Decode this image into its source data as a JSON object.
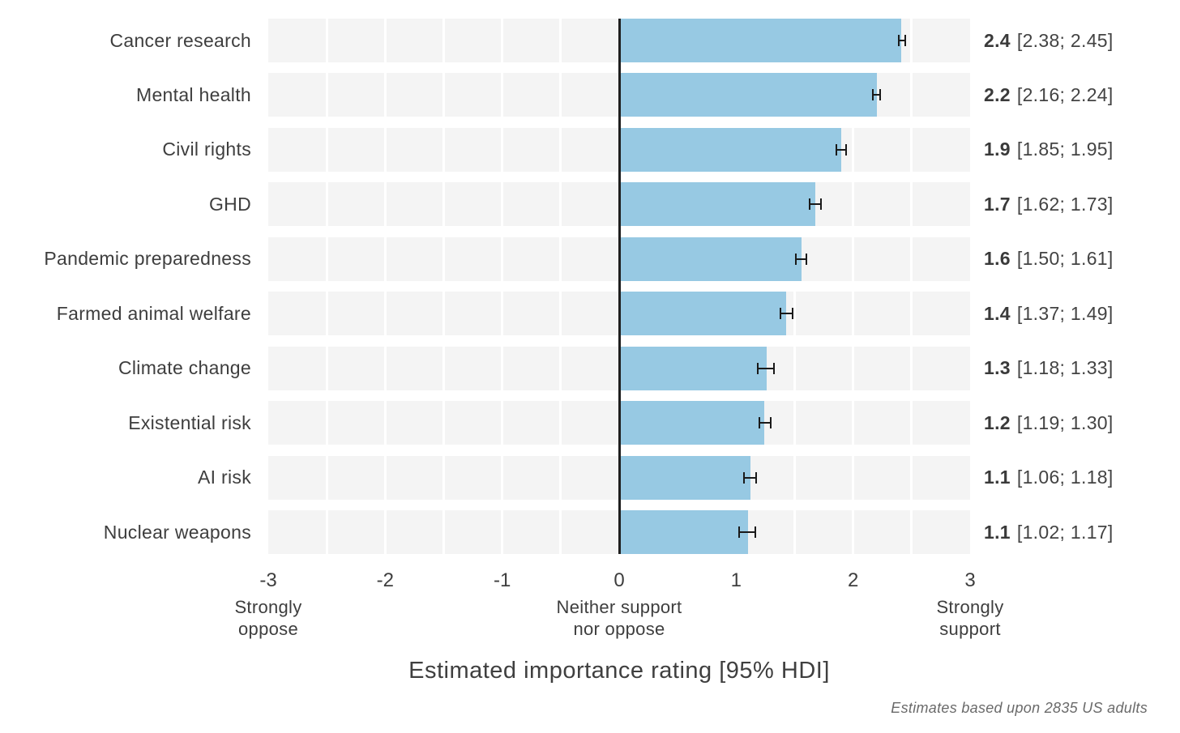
{
  "chart_data": {
    "type": "bar",
    "orientation": "horizontal",
    "xlabel": "Estimated importance rating [95% HDI]",
    "annotation": "Estimates based upon 2835 US adults",
    "xlim": [
      -3,
      3
    ],
    "gridlines_every": 0.5,
    "legend": "none",
    "x_ticks": [
      {
        "value": -3,
        "label": "-3",
        "sublabel_lines": [
          "Strongly",
          "oppose"
        ]
      },
      {
        "value": -2,
        "label": "-2",
        "sublabel_lines": []
      },
      {
        "value": -1,
        "label": "-1",
        "sublabel_lines": []
      },
      {
        "value": 0,
        "label": "0",
        "sublabel_lines": [
          "Neither support",
          "nor oppose"
        ]
      },
      {
        "value": 1,
        "label": "1",
        "sublabel_lines": []
      },
      {
        "value": 2,
        "label": "2",
        "sublabel_lines": []
      },
      {
        "value": 3,
        "label": "3",
        "sublabel_lines": [
          "Strongly",
          "support"
        ]
      }
    ],
    "rows": [
      {
        "category": "Cancer research",
        "estimate": 2.41,
        "estimate_display": "2.4",
        "ci_low": 2.38,
        "ci_high": 2.45,
        "ci_display": "[2.38; 2.45]"
      },
      {
        "category": "Mental health",
        "estimate": 2.2,
        "estimate_display": "2.2",
        "ci_low": 2.16,
        "ci_high": 2.24,
        "ci_display": "[2.16; 2.24]"
      },
      {
        "category": "Civil rights",
        "estimate": 1.9,
        "estimate_display": "1.9",
        "ci_low": 1.85,
        "ci_high": 1.95,
        "ci_display": "[1.85; 1.95]"
      },
      {
        "category": "GHD",
        "estimate": 1.68,
        "estimate_display": "1.7",
        "ci_low": 1.62,
        "ci_high": 1.73,
        "ci_display": "[1.62; 1.73]"
      },
      {
        "category": "Pandemic preparedness",
        "estimate": 1.56,
        "estimate_display": "1.6",
        "ci_low": 1.5,
        "ci_high": 1.61,
        "ci_display": "[1.50; 1.61]"
      },
      {
        "category": "Farmed animal welfare",
        "estimate": 1.43,
        "estimate_display": "1.4",
        "ci_low": 1.37,
        "ci_high": 1.49,
        "ci_display": "[1.37; 1.49]"
      },
      {
        "category": "Climate change",
        "estimate": 1.26,
        "estimate_display": "1.3",
        "ci_low": 1.18,
        "ci_high": 1.33,
        "ci_display": "[1.18; 1.33]"
      },
      {
        "category": "Existential risk",
        "estimate": 1.24,
        "estimate_display": "1.2",
        "ci_low": 1.19,
        "ci_high": 1.3,
        "ci_display": "[1.19; 1.30]"
      },
      {
        "category": "AI risk",
        "estimate": 1.12,
        "estimate_display": "1.1",
        "ci_low": 1.06,
        "ci_high": 1.18,
        "ci_display": "[1.06; 1.18]"
      },
      {
        "category": "Nuclear weapons",
        "estimate": 1.1,
        "estimate_display": "1.1",
        "ci_low": 1.02,
        "ci_high": 1.17,
        "ci_display": "[1.02; 1.17]"
      }
    ],
    "colors": {
      "bar": "#97C9E3",
      "band": "#F4F4F4",
      "gridline": "#FFFFFF",
      "zero_line": "#1F1F1F",
      "error_bar": "#1A1A1A",
      "text": "#3E3E3E",
      "footnote": "#6A6A6A"
    }
  }
}
